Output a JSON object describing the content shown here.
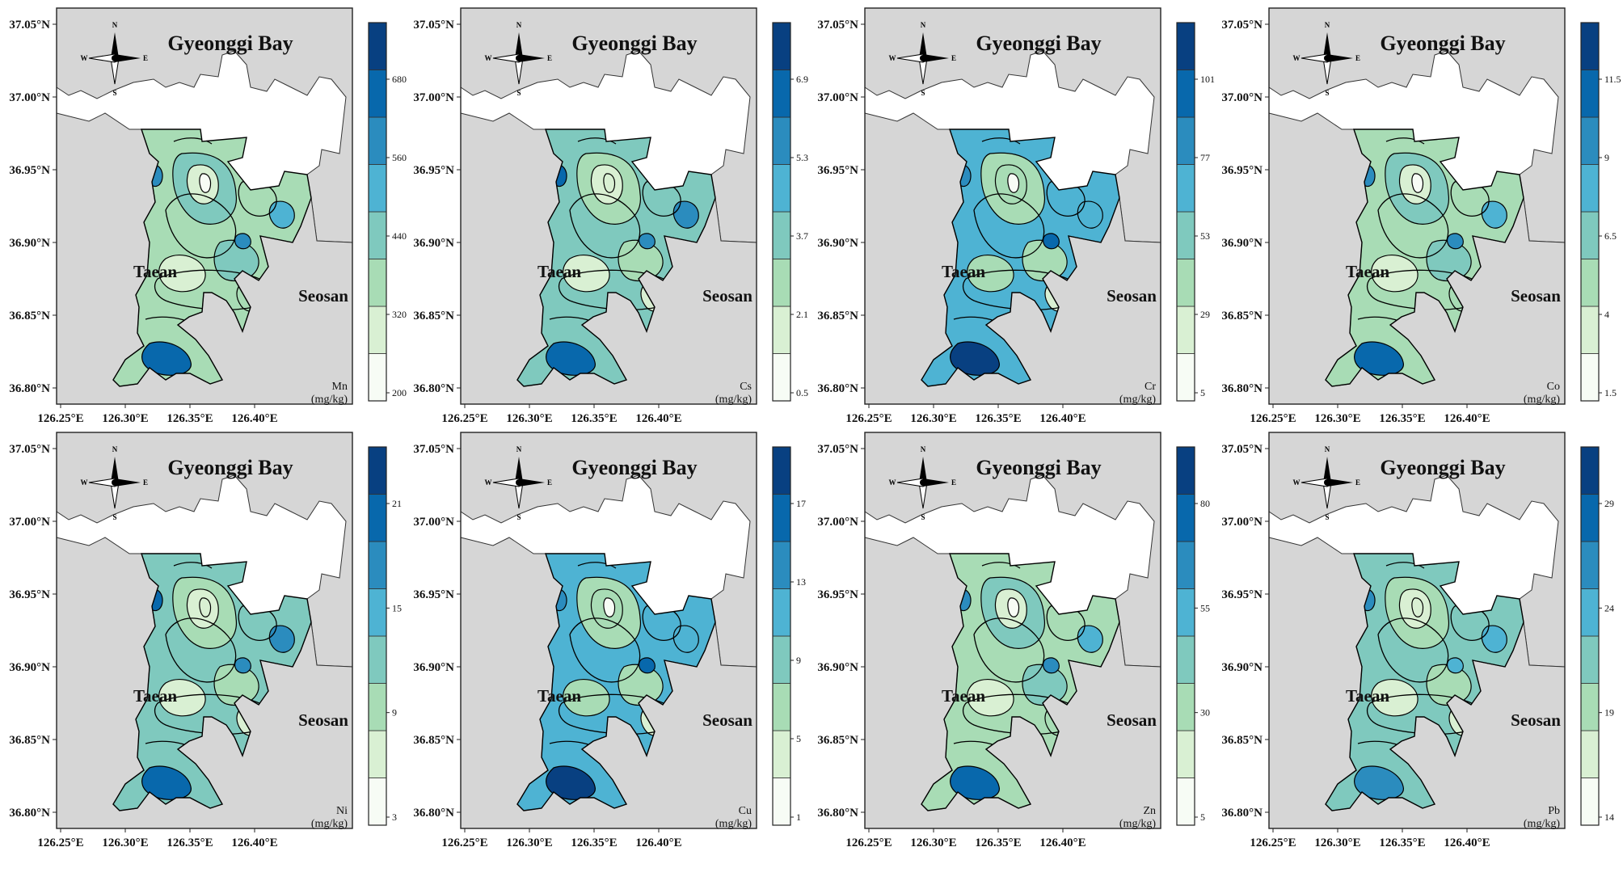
{
  "map": {
    "title": "Gyeonggi Bay",
    "places": [
      "Taean",
      "Seosan"
    ],
    "compass": [
      "N",
      "E",
      "S",
      "W"
    ],
    "lat_ticks": [
      "37.05°N",
      "37.00°N",
      "36.95°N",
      "36.90°N",
      "36.85°N",
      "36.80°N"
    ],
    "lon_ticks": [
      "126.25°E",
      "126.30°E",
      "126.35°E",
      "126.40°E"
    ],
    "unit": "(mg/kg)",
    "colors": {
      "land": "#d6d6d6",
      "ramp": [
        "#f7fcf5",
        "#d9f0d3",
        "#a8dcb5",
        "#7fc9be",
        "#4eb3d3",
        "#2b8cbe",
        "#0868ac",
        "#084081"
      ]
    }
  },
  "panels": [
    {
      "element": "Mn",
      "colorbar_ticks": [
        "200",
        "320",
        "440",
        "560",
        "680"
      ]
    },
    {
      "element": "Cs",
      "colorbar_ticks": [
        "0.5",
        "2.1",
        "3.7",
        "5.3",
        "6.9"
      ]
    },
    {
      "element": "Cr",
      "colorbar_ticks": [
        "5",
        "29",
        "53",
        "77",
        "101"
      ]
    },
    {
      "element": "Co",
      "colorbar_ticks": [
        "1.5",
        "4",
        "6.5",
        "9",
        "11.5"
      ]
    },
    {
      "element": "Ni",
      "colorbar_ticks": [
        "3",
        "9",
        "15",
        "21"
      ]
    },
    {
      "element": "Cu",
      "colorbar_ticks": [
        "1",
        "5",
        "9",
        "13",
        "17"
      ]
    },
    {
      "element": "Zn",
      "colorbar_ticks": [
        "5",
        "30",
        "55",
        "80"
      ]
    },
    {
      "element": "Pb",
      "colorbar_ticks": [
        "14",
        "19",
        "24",
        "29"
      ]
    }
  ]
}
